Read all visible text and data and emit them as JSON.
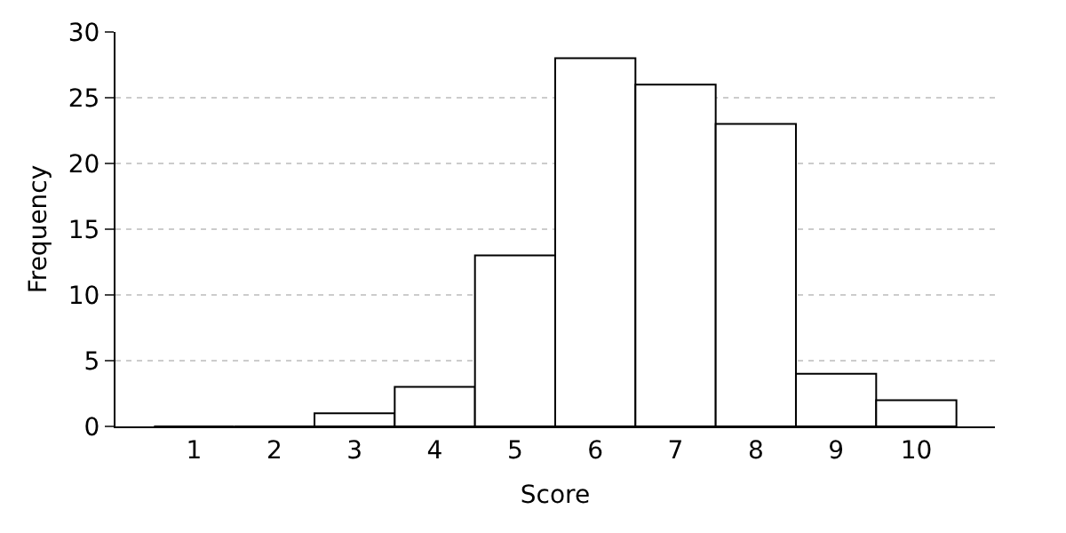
{
  "chart_data": {
    "type": "bar",
    "xlabel": "Score",
    "ylabel": "Frequency",
    "categories": [
      "1",
      "2",
      "3",
      "4",
      "5",
      "6",
      "7",
      "8",
      "9",
      "10"
    ],
    "values": [
      0,
      0,
      1,
      3,
      13,
      28,
      26,
      23,
      4,
      2
    ],
    "color": "#ffffff",
    "ylim": [
      0,
      30
    ],
    "yticks": [
      0,
      5,
      10,
      15,
      20,
      25,
      30
    ],
    "grid": "y"
  }
}
